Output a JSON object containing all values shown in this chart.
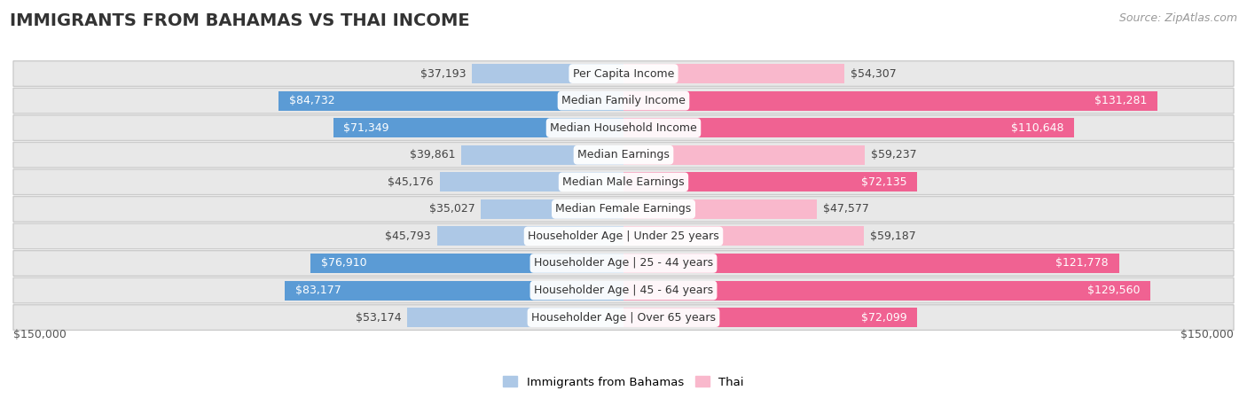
{
  "title": "IMMIGRANTS FROM BAHAMAS VS THAI INCOME",
  "source": "Source: ZipAtlas.com",
  "categories": [
    "Per Capita Income",
    "Median Family Income",
    "Median Household Income",
    "Median Earnings",
    "Median Male Earnings",
    "Median Female Earnings",
    "Householder Age | Under 25 years",
    "Householder Age | 25 - 44 years",
    "Householder Age | 45 - 64 years",
    "Householder Age | Over 65 years"
  ],
  "bahamas_values": [
    37193,
    84732,
    71349,
    39861,
    45176,
    35027,
    45793,
    76910,
    83177,
    53174
  ],
  "thai_values": [
    54307,
    131281,
    110648,
    59237,
    72135,
    47577,
    59187,
    121778,
    129560,
    72099
  ],
  "bahamas_color_light": "#adc8e6",
  "bahamas_color_dark": "#5b9bd5",
  "thai_color_light": "#f9b8cc",
  "thai_color_dark": "#f06292",
  "bahamas_label": "Immigrants from Bahamas",
  "thai_label": "Thai",
  "max_value": 150000,
  "axis_label_left": "$150,000",
  "axis_label_right": "$150,000",
  "title_fontsize": 14,
  "source_fontsize": 9,
  "bar_label_fontsize": 9,
  "category_fontsize": 9,
  "row_bg_color": "#e8e8e8",
  "white": "#ffffff"
}
